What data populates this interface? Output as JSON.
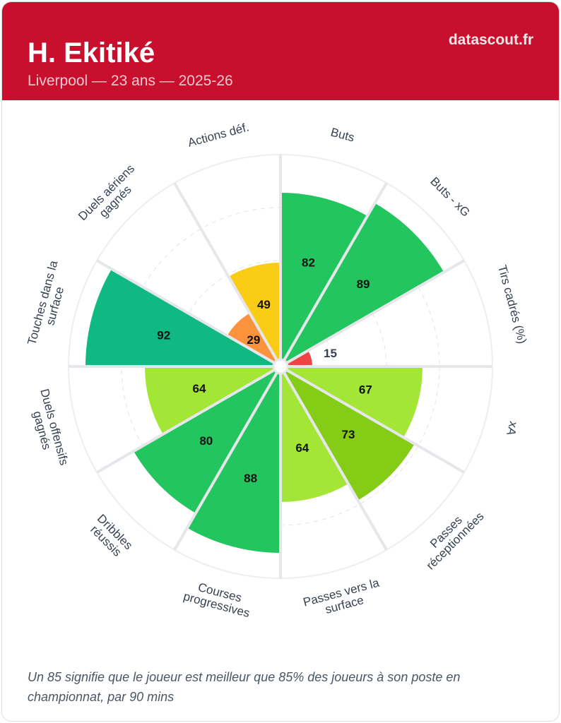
{
  "header": {
    "player": "H. Ekitiké",
    "subtitle": "Liverpool — 23 ans — 2025-26",
    "brand": "datascout.fr"
  },
  "chart_data": {
    "type": "pizza",
    "range": [
      0,
      100
    ],
    "categories": [
      {
        "label": [
          "Buts"
        ],
        "value": 82,
        "color": "#22c55e"
      },
      {
        "label": [
          "Buts - xG"
        ],
        "value": 89,
        "color": "#22c55e"
      },
      {
        "label": [
          "Tirs cadrés (%)"
        ],
        "value": 15,
        "color": "#ef4444"
      },
      {
        "label": [
          "xA"
        ],
        "value": 67,
        "color": "#a3e635"
      },
      {
        "label": [
          "Passes",
          "réceptionnées"
        ],
        "value": 73,
        "color": "#84cc16"
      },
      {
        "label": [
          "Passes vers la",
          "surface"
        ],
        "value": 64,
        "color": "#a3e635"
      },
      {
        "label": [
          "Courses",
          "progressives"
        ],
        "value": 88,
        "color": "#22c55e"
      },
      {
        "label": [
          "Dribbles",
          "réussis"
        ],
        "value": 80,
        "color": "#22c55e"
      },
      {
        "label": [
          "Duels offensifs",
          "gagnés"
        ],
        "value": 64,
        "color": "#a3e635"
      },
      {
        "label": [
          "Touches dans la",
          "surface"
        ],
        "value": 92,
        "color": "#10b981"
      },
      {
        "label": [
          "Duels aériens",
          "gagnés"
        ],
        "value": 29,
        "color": "#fb923c"
      },
      {
        "label": [
          "Actions déf."
        ],
        "value": 49,
        "color": "#facc15"
      }
    ]
  },
  "footnote": "Un 85 signifie que le joueur est meilleur que 85% des joueurs à son poste en championnat, par 90 mins"
}
